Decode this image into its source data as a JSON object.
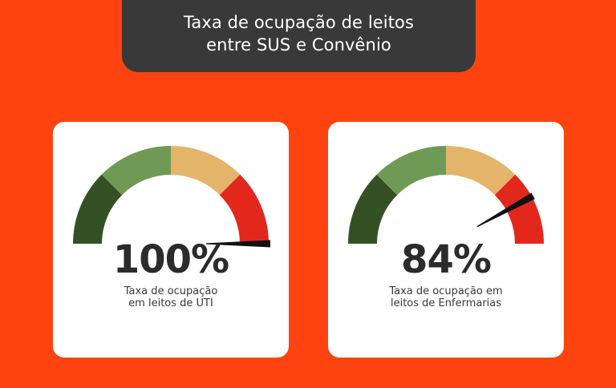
{
  "header": {
    "title_line1": "Taxa de ocupação de leitos",
    "title_line2": "entre SUS e Convênio"
  },
  "chart_data": [
    {
      "type": "gauge",
      "value": 100,
      "value_label": "100%",
      "range": [
        0,
        100
      ],
      "caption_line1": "Taxa de ocupação",
      "caption_line2": "em leitos de UTI",
      "segments": [
        {
          "color": "#345125",
          "from": 0,
          "to": 25
        },
        {
          "color": "#6f9a55",
          "from": 25,
          "to": 50
        },
        {
          "color": "#e4b46a",
          "from": 50,
          "to": 75
        },
        {
          "color": "#e2281d",
          "from": 75,
          "to": 100
        }
      ]
    },
    {
      "type": "gauge",
      "value": 84,
      "value_label": "84%",
      "range": [
        0,
        100
      ],
      "caption_line1": "Taxa de ocupação em",
      "caption_line2": "leitos de Enfermarias",
      "segments": [
        {
          "color": "#345125",
          "from": 0,
          "to": 25
        },
        {
          "color": "#6f9a55",
          "from": 25,
          "to": 50
        },
        {
          "color": "#e4b46a",
          "from": 50,
          "to": 75
        },
        {
          "color": "#e2281d",
          "from": 75,
          "to": 100
        }
      ]
    }
  ],
  "colors": {
    "background": "#ff4310",
    "title_box": "#393939",
    "needle": "#111111",
    "value_text": "#2b2b2b"
  }
}
